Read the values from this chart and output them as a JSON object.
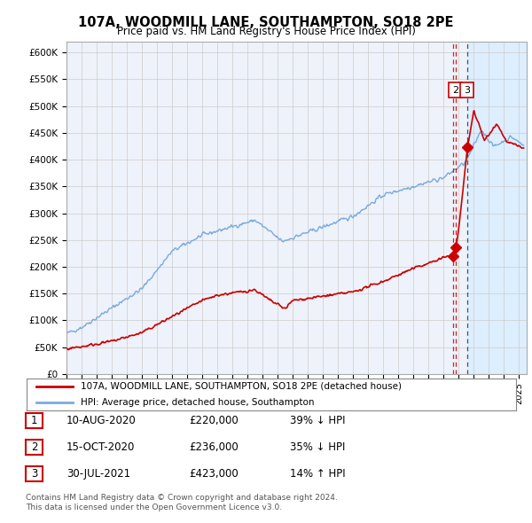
{
  "title": "107A, WOODMILL LANE, SOUTHAMPTON, SO18 2PE",
  "subtitle": "Price paid vs. HM Land Registry's House Price Index (HPI)",
  "ylim": [
    0,
    620000
  ],
  "yticks": [
    0,
    50000,
    100000,
    150000,
    200000,
    250000,
    300000,
    350000,
    400000,
    450000,
    500000,
    550000,
    600000
  ],
  "ytick_labels": [
    "£0",
    "£50K",
    "£100K",
    "£150K",
    "£200K",
    "£250K",
    "£300K",
    "£350K",
    "£400K",
    "£450K",
    "£500K",
    "£550K",
    "£600K"
  ],
  "xlim_start": 1995.0,
  "xlim_end": 2025.5,
  "hpi_color": "#7aaadd",
  "price_color": "#cc0000",
  "sale_color": "#cc0000",
  "shade_color": "#ddeeff",
  "background_color": "#ffffff",
  "plot_bg_color": "#eef2fa",
  "grid_color": "#cccccc",
  "sales": [
    {
      "num": 1,
      "year": 2020.61,
      "price": 220000,
      "date": "10-AUG-2020",
      "pct": "39%",
      "dir": "↓"
    },
    {
      "num": 2,
      "year": 2020.79,
      "price": 236000,
      "date": "15-OCT-2020",
      "pct": "35%",
      "dir": "↓"
    },
    {
      "num": 3,
      "year": 2021.55,
      "price": 423000,
      "date": "30-JUL-2021",
      "pct": "14%",
      "dir": "↑"
    }
  ],
  "legend_line1": "107A, WOODMILL LANE, SOUTHAMPTON, SO18 2PE (detached house)",
  "legend_line2": "HPI: Average price, detached house, Southampton",
  "footnote1": "Contains HM Land Registry data © Crown copyright and database right 2024.",
  "footnote2": "This data is licensed under the Open Government Licence v3.0."
}
